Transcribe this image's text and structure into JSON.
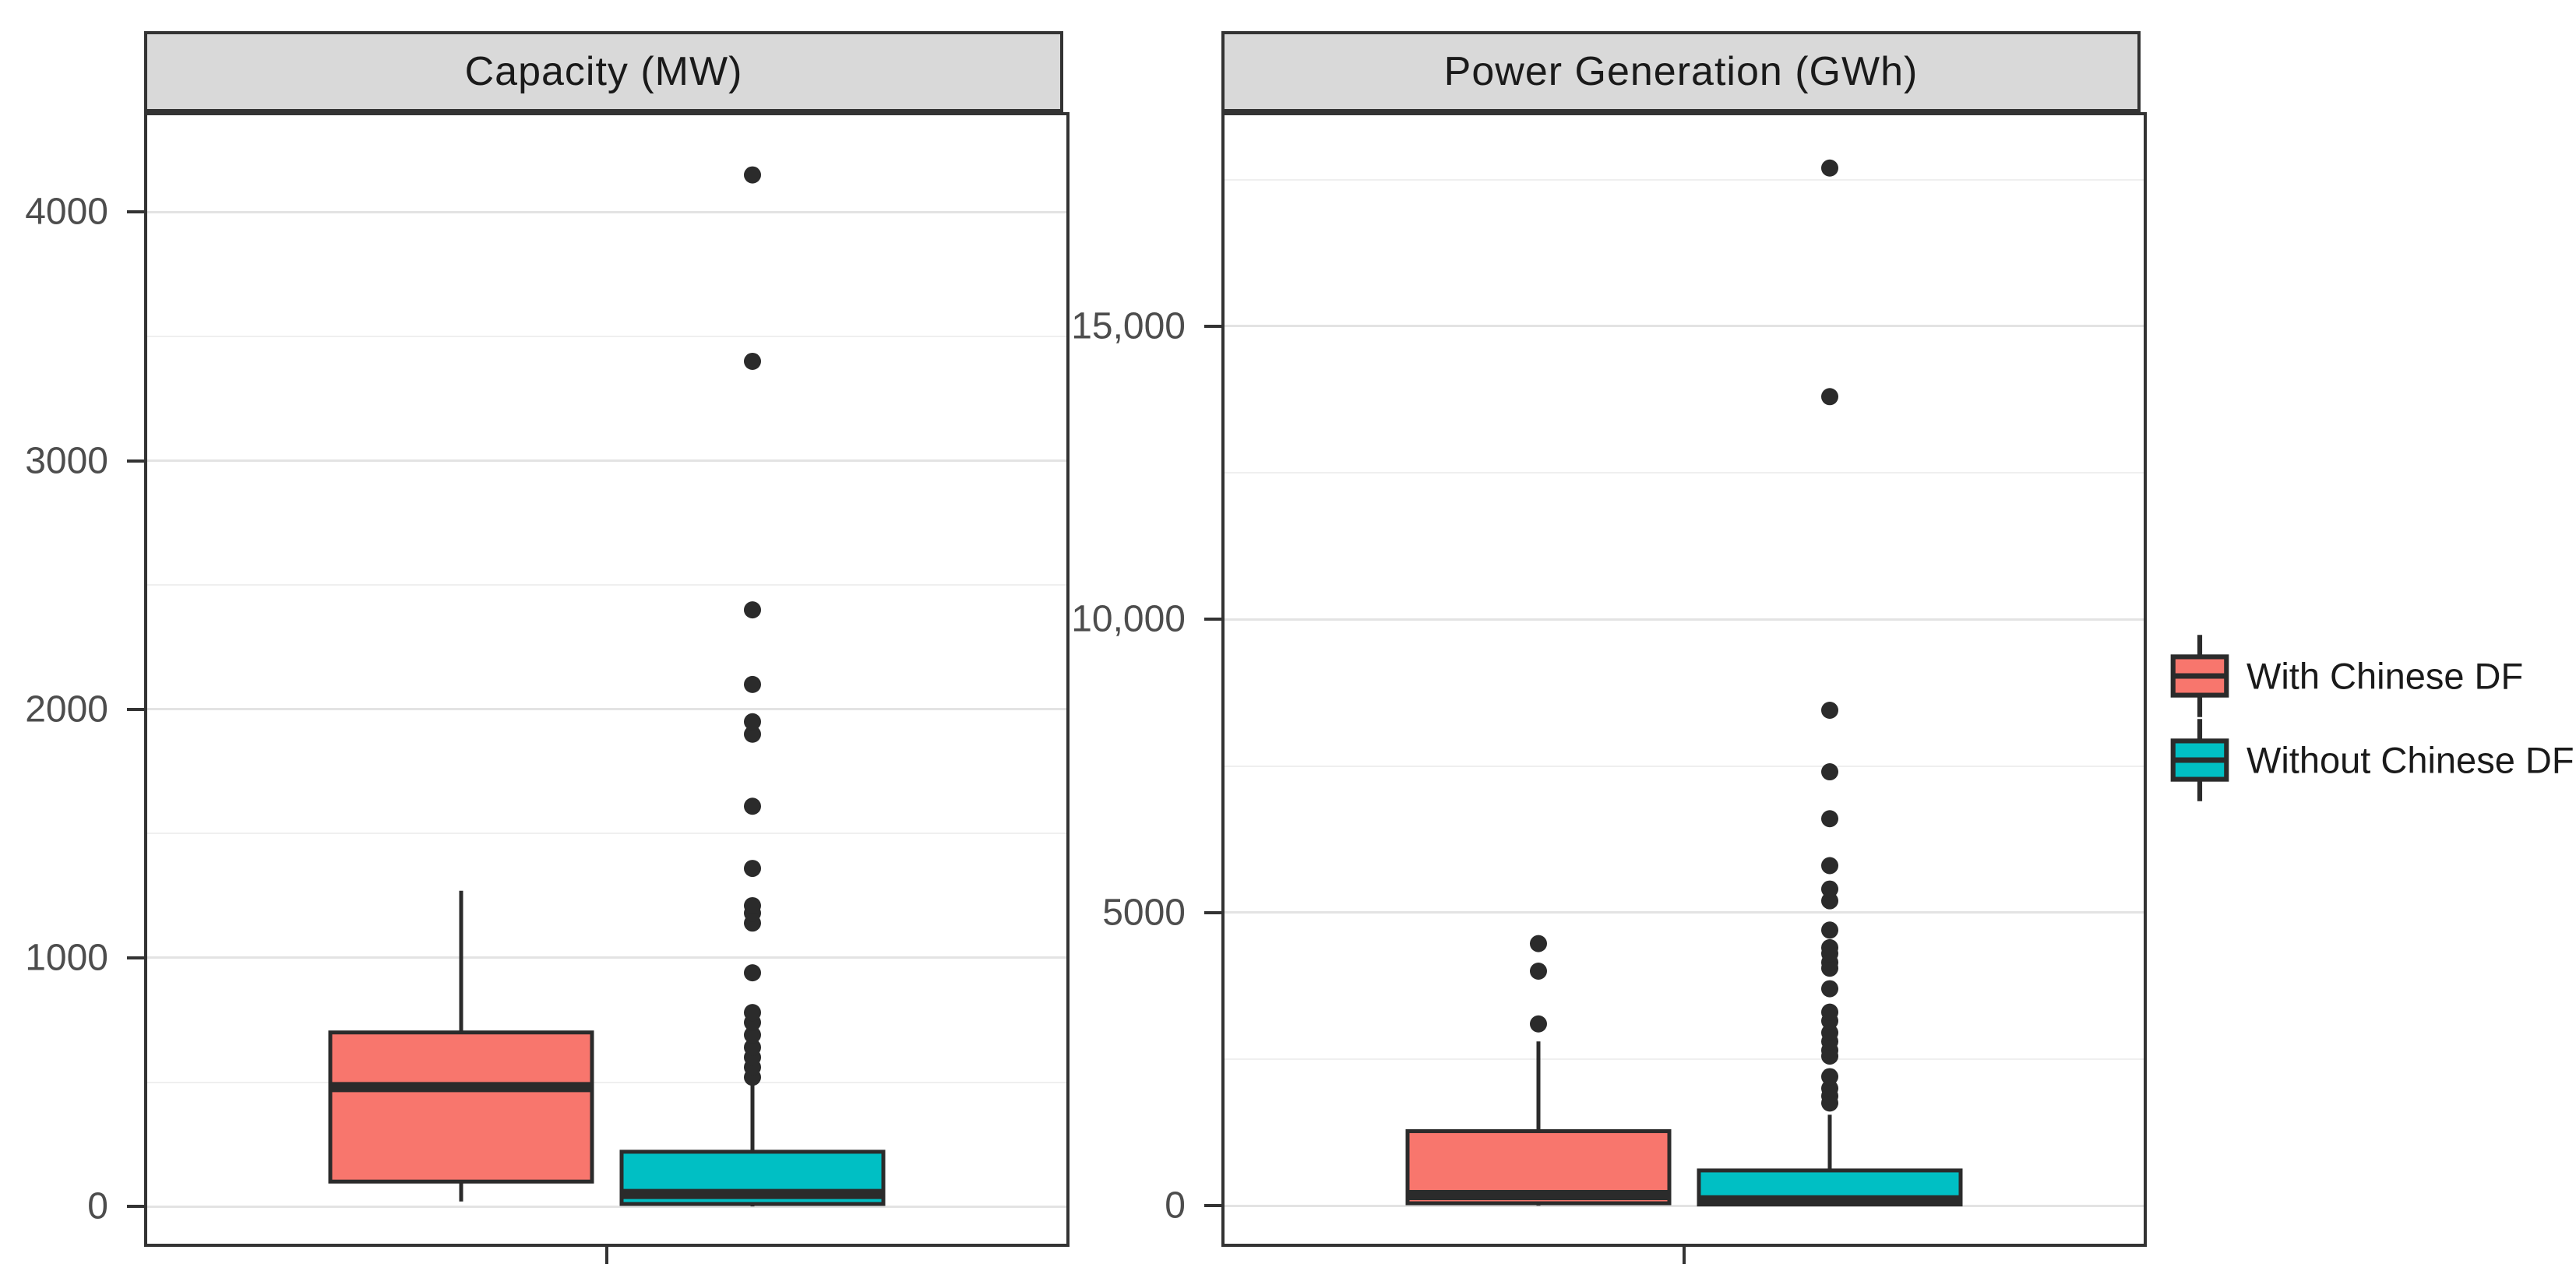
{
  "figure": {
    "background": "#ffffff",
    "strip_background": "#d9d9d9",
    "border_color": "#333333",
    "box_outline_color": "#2b2b2b",
    "gridline_major_color": "#e3e3e3",
    "gridline_minor_color": "#efefef",
    "tick_label_color": "#4d4d4d"
  },
  "legend": {
    "entries": [
      {
        "label": "With Chinese DF",
        "color": "#f8766d",
        "key_icon": "boxplot-glyph-icon"
      },
      {
        "label": "Without Chinese DF",
        "color": "#00bfc4",
        "key_icon": "boxplot-glyph-icon"
      }
    ]
  },
  "chart_data": [
    {
      "type": "boxplot",
      "title": "Capacity (MW)",
      "xlabel": "",
      "ylabel": "",
      "ylim": [
        -150,
        4390
      ],
      "grid": true,
      "ticks": [
        {
          "value": 0,
          "label": "0"
        },
        {
          "value": 1000,
          "label": "1000"
        },
        {
          "value": 2000,
          "label": "2000"
        },
        {
          "value": 3000,
          "label": "3000"
        },
        {
          "value": 4000,
          "label": "4000"
        }
      ],
      "minor_ticks": [
        500,
        1500,
        2500,
        3500
      ],
      "series": [
        {
          "name": "With Chinese DF",
          "color": "#f8766d",
          "whisker_low": 20,
          "q1": 100,
          "median": 480,
          "q3": 700,
          "whisker_high": 1270,
          "outliers": []
        },
        {
          "name": "Without Chinese DF",
          "color": "#00bfc4",
          "whisker_low": 0,
          "q1": 10,
          "median": 50,
          "q3": 220,
          "whisker_high": 490,
          "outliers": [
            520,
            560,
            600,
            640,
            690,
            740,
            780,
            940,
            1140,
            1180,
            1210,
            1360,
            1610,
            1900,
            1950,
            2100,
            2400,
            3400,
            4150
          ]
        }
      ]
    },
    {
      "type": "boxplot",
      "title": "Power Generation (GWh)",
      "xlabel": "",
      "ylabel": "",
      "ylim": [
        -650,
        18600
      ],
      "grid": true,
      "ticks": [
        {
          "value": 0,
          "label": "0"
        },
        {
          "value": 5000,
          "label": "5000"
        },
        {
          "value": 10000,
          "label": "10,000"
        },
        {
          "value": 15000,
          "label": "15,000"
        }
      ],
      "minor_ticks": [
        2500,
        7500,
        12500,
        17500
      ],
      "series": [
        {
          "name": "With Chinese DF",
          "color": "#f8766d",
          "whisker_low": 0,
          "q1": 40,
          "median": 180,
          "q3": 1270,
          "whisker_high": 2800,
          "outliers": [
            3100,
            4000,
            4470
          ]
        },
        {
          "name": "Without Chinese DF",
          "color": "#00bfc4",
          "whisker_low": 0,
          "q1": 20,
          "median": 90,
          "q3": 600,
          "whisker_high": 1550,
          "outliers": [
            1750,
            1870,
            2000,
            2200,
            2550,
            2650,
            2800,
            2950,
            3150,
            3300,
            3700,
            4050,
            4150,
            4300,
            4400,
            4700,
            5200,
            5400,
            5800,
            6600,
            7400,
            8450,
            13800,
            17700
          ]
        }
      ]
    }
  ]
}
